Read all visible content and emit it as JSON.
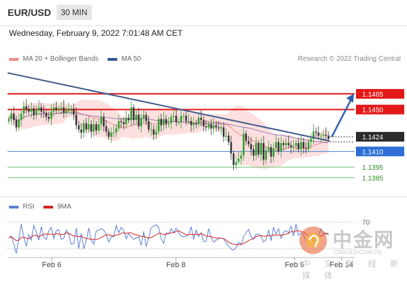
{
  "header": {
    "symbol": "EUR/USD",
    "timeframe": "30 MIN",
    "datetime": "Wednesday, February 9, 2022 7:01:48 AM CET"
  },
  "legend": [
    {
      "label": "MA 20 + Bollinger Bands",
      "color": "#f28b8b"
    },
    {
      "label": "MA 50",
      "color": "#2f5597"
    }
  ],
  "source": "Research © 2022 Trading Central",
  "colors": {
    "resistance": "#e31919",
    "support_blue": "#4a7fd0",
    "support_green": "#6cbf6c",
    "trend": "#3d5a8a",
    "bull": "#2e9e2e",
    "bear": "#333333",
    "band": "#fbd2d2"
  },
  "rsi_legend": [
    {
      "label": "RSI",
      "color": "#5b7fd6"
    },
    {
      "label": "9MA",
      "color": "#d42020"
    }
  ],
  "watermark": {
    "cn": "中金网",
    "url": "CNGOLD.COM.CN",
    "sub": "中 文 财 经 新 媒 体"
  },
  "chart_data": {
    "type": "candlestick",
    "title": "EUR/USD",
    "ylim": [
      1.137,
      1.149
    ],
    "price_labels": [
      {
        "label": "1.1465",
        "value": 1.1465,
        "style": "red-box"
      },
      {
        "label": "1.1450",
        "value": 1.145,
        "style": "red-box"
      },
      {
        "label": "1.1424",
        "value": 1.1424,
        "style": "dark-box"
      },
      {
        "label": "1.1410",
        "value": 1.141,
        "style": "blue-box"
      },
      {
        "label": "1.1395",
        "value": 1.1395,
        "style": "green-text"
      },
      {
        "label": "1.1385",
        "value": 1.1385,
        "style": "green-text"
      }
    ],
    "levels": [
      {
        "value": 1.1465,
        "color": "#e31919",
        "width": 2
      },
      {
        "value": 1.145,
        "color": "#e31919",
        "width": 2
      },
      {
        "value": 1.141,
        "color": "#4a7fd0",
        "width": 1
      },
      {
        "value": 1.1395,
        "color": "#6cbf6c",
        "width": 1
      },
      {
        "value": 1.1385,
        "color": "#6cbf6c",
        "width": 1
      }
    ],
    "x_ticks": [
      "Feb 6",
      "Feb 8",
      "Feb 9",
      "Feb 14"
    ],
    "trendline": {
      "start": 1.1485,
      "end": 1.142
    },
    "forecast_arrow": {
      "from": 1.1424,
      "to": 1.1465
    },
    "closes": [
      1.1441,
      1.1446,
      1.144,
      1.1433,
      1.144,
      1.1446,
      1.1453,
      1.145,
      1.1448,
      1.1451,
      1.1445,
      1.1449,
      1.1452,
      1.1448,
      1.1447,
      1.1443,
      1.1441,
      1.1448,
      1.1452,
      1.145,
      1.1451,
      1.1452,
      1.1447,
      1.1449,
      1.1451,
      1.1451,
      1.1445,
      1.1435,
      1.1431,
      1.1428,
      1.1437,
      1.1431,
      1.1436,
      1.1429,
      1.1436,
      1.143,
      1.1436,
      1.1443,
      1.1434,
      1.1429,
      1.1424,
      1.1428,
      1.1428,
      1.1432,
      1.1439,
      1.1438,
      1.1436,
      1.1442,
      1.144,
      1.1452,
      1.144,
      1.1445,
      1.1434,
      1.1442,
      1.1445,
      1.1439,
      1.1431,
      1.1431,
      1.1426,
      1.1429,
      1.1441,
      1.1435,
      1.1441,
      1.1436,
      1.1437,
      1.1443,
      1.1444,
      1.1438,
      1.1438,
      1.1444,
      1.1444,
      1.1439,
      1.1439,
      1.1435,
      1.1437,
      1.1436,
      1.1442,
      1.144,
      1.1434,
      1.1433,
      1.1436,
      1.1432,
      1.1435,
      1.1433,
      1.1432,
      1.1433,
      1.1424,
      1.1425,
      1.1419,
      1.1408,
      1.1397,
      1.14,
      1.1403,
      1.1406,
      1.1427,
      1.142,
      1.1417,
      1.1412,
      1.1406,
      1.1418,
      1.1407,
      1.1418,
      1.1402,
      1.1411,
      1.1414,
      1.1405,
      1.1413,
      1.1419,
      1.141,
      1.1418,
      1.1416,
      1.1418,
      1.1416,
      1.1414,
      1.1415,
      1.1418,
      1.1412,
      1.1419,
      1.1413,
      1.1412,
      1.1419,
      1.1422,
      1.1429,
      1.1428,
      1.1425,
      1.1425,
      1.1426,
      1.1425,
      1.1422
    ],
    "rsi": {
      "ylim": [
        20,
        80
      ],
      "levels": [
        70,
        30
      ],
      "level_labels": [
        "70"
      ],
      "rsi_series": [
        46,
        49,
        37,
        23,
        45,
        67,
        47,
        34,
        51,
        43,
        65,
        55,
        43,
        63,
        47,
        44,
        57,
        62,
        45,
        57,
        59,
        44,
        46,
        58,
        51,
        37,
        38,
        61,
        30,
        53,
        30,
        42,
        61,
        43,
        37,
        57,
        58,
        60,
        58,
        52,
        40,
        48,
        48,
        65,
        54,
        62,
        58,
        45,
        53,
        48,
        44,
        46,
        48,
        35,
        56,
        33,
        47,
        61,
        64,
        66,
        62,
        45,
        38,
        54,
        52,
        60,
        54,
        61,
        54,
        49,
        48,
        49,
        51,
        63,
        44,
        58,
        48,
        54,
        41,
        41,
        60,
        47,
        40,
        43,
        45,
        46,
        45,
        39,
        34,
        30,
        28,
        32,
        40,
        36,
        48,
        54,
        59,
        48,
        44,
        52,
        52,
        49,
        40,
        44,
        58,
        42,
        62,
        52,
        60,
        46,
        55,
        57,
        54,
        64,
        49,
        67,
        50,
        54,
        51,
        40,
        42,
        52,
        41,
        53,
        50,
        60,
        53,
        54,
        50
      ],
      "ma9_series": [
        46,
        48,
        45,
        42,
        43,
        47,
        47,
        46,
        45,
        48,
        50,
        50,
        48,
        50,
        52,
        52,
        52,
        52,
        51,
        53,
        52,
        51,
        52,
        54,
        53,
        51,
        49,
        49,
        48,
        49,
        47,
        45,
        45,
        44,
        44,
        44,
        45,
        47,
        49,
        51,
        51,
        50,
        49,
        51,
        51,
        53,
        54,
        53,
        54,
        54,
        52,
        51,
        50,
        48,
        49,
        47,
        46,
        47,
        49,
        51,
        53,
        53,
        51,
        52,
        53,
        54,
        54,
        56,
        57,
        55,
        53,
        51,
        51,
        52,
        51,
        52,
        51,
        53,
        51,
        49,
        49,
        48,
        47,
        46,
        46,
        46,
        45,
        43,
        40,
        38,
        37,
        36,
        36,
        37,
        38,
        40,
        42,
        44,
        46,
        48,
        49,
        50,
        49,
        49,
        50,
        49,
        51,
        50,
        51,
        50,
        51,
        52,
        53,
        56,
        55,
        57,
        57,
        56,
        55,
        52,
        50,
        49,
        48,
        49,
        48,
        49,
        51,
        53,
        53
      ]
    }
  }
}
